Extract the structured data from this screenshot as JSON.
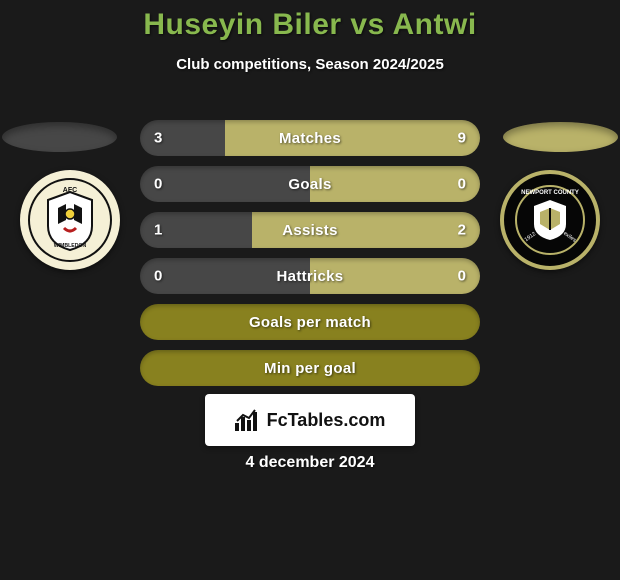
{
  "title": {
    "player1": "Huseyin Biler",
    "vs": "vs",
    "player2": "Antwi"
  },
  "title_color": "#88b84e",
  "subtitle": "Club competitions, Season 2024/2025",
  "player_left": {
    "oval_color": "#474747",
    "crest_bg": "#f5f0d6",
    "crest_accent1": "#111111",
    "crest_accent2": "#f1d13a",
    "crest_accent3": "#b71e1e"
  },
  "player_right": {
    "oval_color": "#b9b269",
    "crest_bg": "#060606",
    "crest_ring": "#b9b269",
    "crest_accent": "#ffffff"
  },
  "bars": [
    {
      "kind": "stat",
      "label": "Matches",
      "left_val": "3",
      "right_val": "9",
      "left_color": "#474747",
      "right_color": "#b9b269",
      "left_width_pct": 25
    },
    {
      "kind": "stat",
      "label": "Goals",
      "left_val": "0",
      "right_val": "0",
      "left_color": "#474747",
      "right_color": "#b9b269",
      "left_width_pct": 50
    },
    {
      "kind": "stat",
      "label": "Assists",
      "left_val": "1",
      "right_val": "2",
      "left_color": "#474747",
      "right_color": "#b9b269",
      "left_width_pct": 33
    },
    {
      "kind": "stat",
      "label": "Hattricks",
      "left_val": "0",
      "right_val": "0",
      "left_color": "#474747",
      "right_color": "#b9b269",
      "left_width_pct": 50
    },
    {
      "kind": "olive",
      "label": "Goals per match",
      "olive_color": "#88811f"
    },
    {
      "kind": "olive",
      "label": "Min per goal",
      "olive_color": "#88811f"
    }
  ],
  "branding": "FcTables.com",
  "date": "4 december 2024",
  "background_color": "#1a1a1a"
}
